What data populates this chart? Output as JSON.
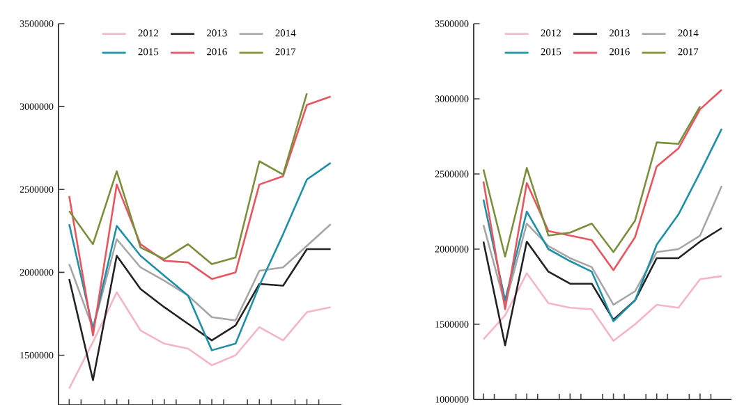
{
  "chart_data": [
    {
      "type": "line",
      "categories": [
        null,
        null,
        null,
        null,
        null,
        null,
        null,
        null,
        null,
        null,
        null,
        null
      ],
      "ylim": [
        1200000,
        3500000
      ],
      "yticks": [
        1500000,
        2000000,
        2500000,
        3000000,
        3500000
      ],
      "legend": "top",
      "grid": false,
      "marker": "none",
      "line_style": "solid",
      "series": [
        {
          "name": "2012",
          "color": "#f4b6c2",
          "values": [
            1300000,
            1580000,
            1880000,
            1650000,
            1570000,
            1540000,
            1440000,
            1500000,
            1670000,
            1590000,
            1760000,
            1790000
          ]
        },
        {
          "name": "2013",
          "color": "#222222",
          "values": [
            1960000,
            1350000,
            2100000,
            1900000,
            1790000,
            1690000,
            1590000,
            1680000,
            1930000,
            1920000,
            2140000,
            2140000
          ]
        },
        {
          "name": "2014",
          "color": "#a6a6a6",
          "values": [
            2050000,
            1660000,
            2200000,
            2030000,
            1950000,
            1860000,
            1730000,
            1710000,
            2010000,
            2030000,
            2160000,
            2290000
          ]
        },
        {
          "name": "2015",
          "color": "#1f8fa6",
          "values": [
            2290000,
            1660000,
            2280000,
            2100000,
            1980000,
            1860000,
            1530000,
            1570000,
            1920000,
            2230000,
            2560000,
            2660000
          ]
        },
        {
          "name": "2016",
          "color": "#e8555f",
          "values": [
            2460000,
            1620000,
            2530000,
            2170000,
            2070000,
            2060000,
            1960000,
            2000000,
            2530000,
            2580000,
            3010000,
            3060000
          ]
        },
        {
          "name": "2017",
          "color": "#7a8f3c",
          "values": [
            2370000,
            2170000,
            2610000,
            2150000,
            2080000,
            2170000,
            2050000,
            2090000,
            2670000,
            2590000,
            3080000,
            null
          ]
        }
      ]
    },
    {
      "type": "line",
      "categories": [
        null,
        null,
        null,
        null,
        null,
        null,
        null,
        null,
        null,
        null,
        null,
        null
      ],
      "ylim": [
        1000000,
        3500000
      ],
      "yticks": [
        1000000,
        1500000,
        2000000,
        2500000,
        3000000,
        3500000
      ],
      "legend": "top",
      "grid": false,
      "marker": "none",
      "line_style": "solid",
      "series": [
        {
          "name": "2012",
          "color": "#f4b6c2",
          "values": [
            1400000,
            1560000,
            1840000,
            1640000,
            1610000,
            1600000,
            1390000,
            1500000,
            1630000,
            1610000,
            1800000,
            1820000
          ]
        },
        {
          "name": "2013",
          "color": "#222222",
          "values": [
            2050000,
            1360000,
            2050000,
            1850000,
            1770000,
            1770000,
            1530000,
            1660000,
            1940000,
            1940000,
            2050000,
            2140000
          ]
        },
        {
          "name": "2014",
          "color": "#a6a6a6",
          "values": [
            2160000,
            1630000,
            2170000,
            2020000,
            1940000,
            1880000,
            1630000,
            1720000,
            1980000,
            2000000,
            2090000,
            2420000
          ]
        },
        {
          "name": "2015",
          "color": "#1f8fa6",
          "values": [
            2330000,
            1660000,
            2250000,
            2000000,
            1920000,
            1850000,
            1520000,
            1660000,
            2030000,
            2230000,
            2510000,
            2800000
          ]
        },
        {
          "name": "2016",
          "color": "#e8555f",
          "values": [
            2450000,
            1600000,
            2440000,
            2120000,
            2090000,
            2060000,
            1860000,
            2080000,
            2550000,
            2670000,
            2930000,
            3060000
          ]
        },
        {
          "name": "2017",
          "color": "#7a8f3c",
          "values": [
            2530000,
            1950000,
            2540000,
            2090000,
            2110000,
            2170000,
            1980000,
            2190000,
            2710000,
            2700000,
            2950000,
            null
          ]
        }
      ]
    }
  ]
}
